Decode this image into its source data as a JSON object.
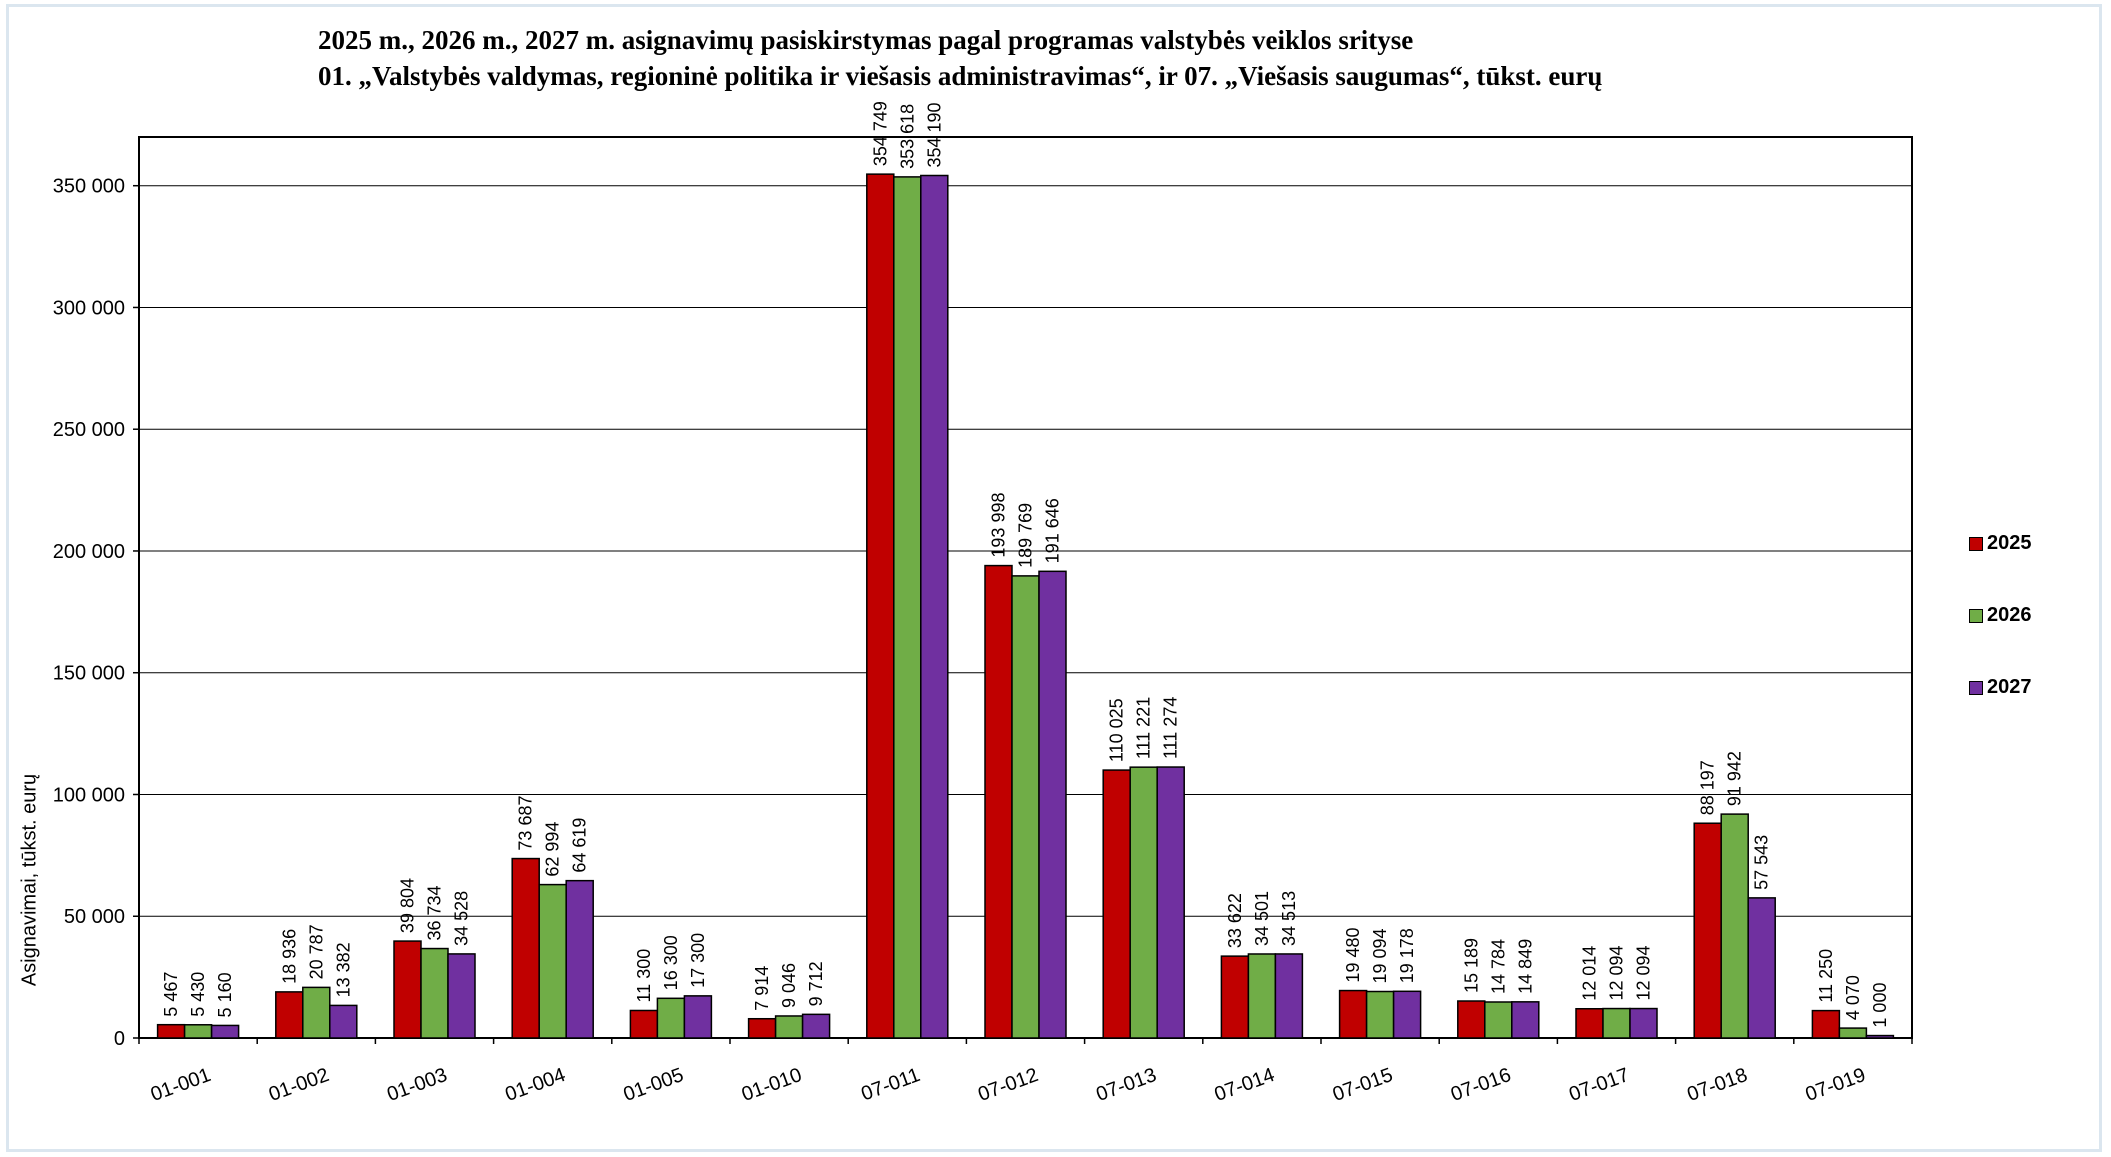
{
  "chart_data": {
    "type": "bar",
    "title": "2025 m., 2026 m., 2027 m. asignavimų pasiskirstymas pagal programas valstybės veiklos srityse",
    "subtitle": "01. „Valstybės valdymas, regioninė politika ir viešasis administravimas“, ir 07. „Viešasis saugumas“, tūkst. eurų",
    "xlabel": "",
    "ylabel": "Asignavimai, tūkst. eurų",
    "ylim": [
      0,
      370000
    ],
    "yticks": [
      0,
      50000,
      100000,
      150000,
      200000,
      250000,
      300000,
      350000
    ],
    "ytick_labels": [
      "0",
      "50 000",
      "100 000",
      "150 000",
      "200 000",
      "250 000",
      "300 000",
      "350 000"
    ],
    "grid": true,
    "legend_position": "right",
    "categories": [
      "01-001",
      "01-002",
      "01-003",
      "01-004",
      "01-005",
      "01-010",
      "07-011",
      "07-012",
      "07-013",
      "07-014",
      "07-015",
      "07-016",
      "07-017",
      "07-018",
      "07-019"
    ],
    "series": [
      {
        "name": "2025",
        "color": "#c00000",
        "values": [
          5467,
          18936,
          39804,
          73687,
          11300,
          7914,
          354749,
          193998,
          110025,
          33622,
          19480,
          15189,
          12014,
          88197,
          11250
        ],
        "labels": [
          "5 467",
          "18 936",
          "39 804",
          "73 687",
          "11 300",
          "7 914",
          "354 749",
          "193 998",
          "110 025",
          "33 622",
          "19 480",
          "15 189",
          "12 014",
          "88 197",
          "11 250"
        ]
      },
      {
        "name": "2026",
        "color": "#70ad47",
        "values": [
          5430,
          20787,
          36734,
          62994,
          16300,
          9046,
          353618,
          189769,
          111221,
          34501,
          19094,
          14784,
          12094,
          91942,
          4070
        ],
        "labels": [
          "5 430",
          "20 787",
          "36 734",
          "62 994",
          "16 300",
          "9 046",
          "353 618",
          "189 769",
          "111 221",
          "34 501",
          "19 094",
          "14 784",
          "12 094",
          "91 942",
          "4 070"
        ]
      },
      {
        "name": "2027",
        "color": "#7030a0",
        "values": [
          5160,
          13382,
          34528,
          64619,
          17300,
          9712,
          354190,
          191646,
          111274,
          34513,
          19178,
          14849,
          12094,
          57543,
          1000
        ],
        "labels": [
          "5 160",
          "13 382",
          "34 528",
          "64 619",
          "17 300",
          "9 712",
          "354 190",
          "191 646",
          "111 274",
          "34 513",
          "19 178",
          "14 849",
          "12 094",
          "57 543",
          "1 000"
        ]
      }
    ]
  }
}
